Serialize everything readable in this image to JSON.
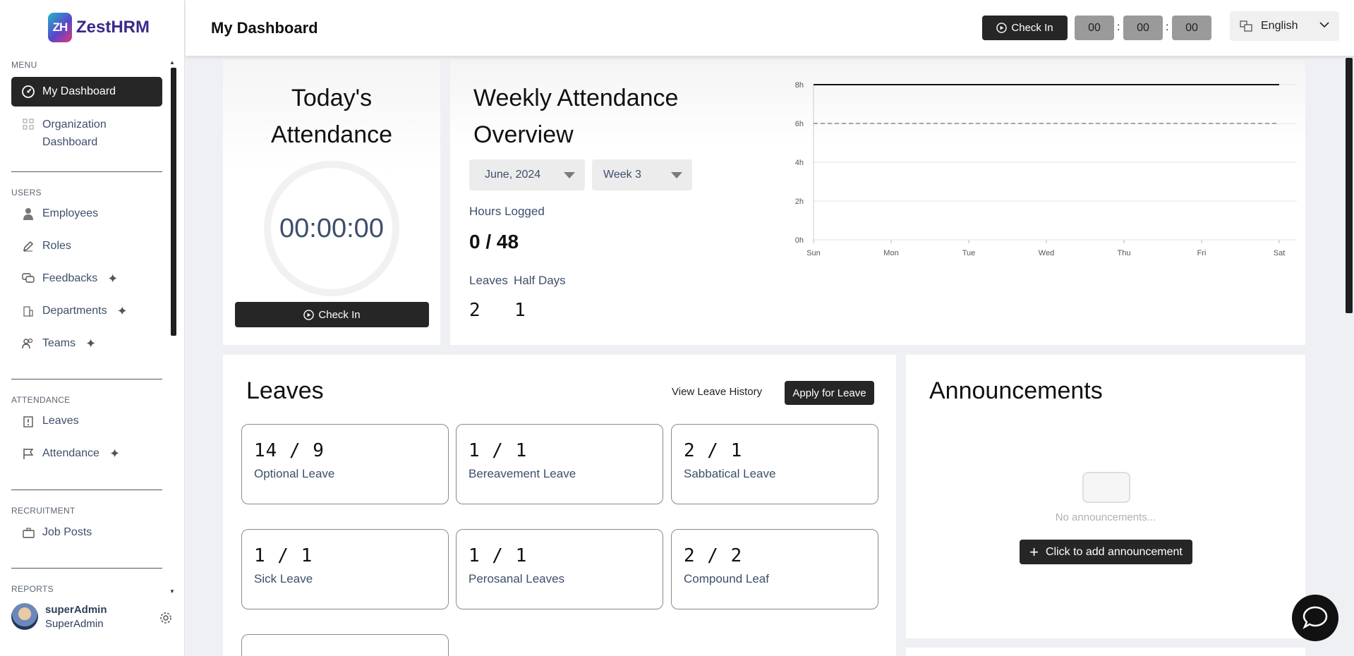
{
  "brand": {
    "logo_mark": "ZH",
    "logo_text": "ZestHRM"
  },
  "sidebar": {
    "sections": {
      "menu": "MENU",
      "users": "USERS",
      "attendance": "ATTENDANCE",
      "recruitment": "RECRUITMENT",
      "reports": "REPORTS"
    },
    "items": {
      "dashboard": "My Dashboard",
      "org_dashboard_1": "Organization",
      "org_dashboard_2": "Dashboard",
      "employees": "Employees",
      "roles": "Roles",
      "feedbacks": "Feedbacks",
      "departments": "Departments",
      "teams": "Teams",
      "leaves": "Leaves",
      "attendance": "Attendance",
      "job_posts": "Job Posts"
    },
    "user": {
      "name": "superAdmin",
      "role": "SuperAdmin"
    }
  },
  "header": {
    "title": "My Dashboard",
    "checkin_label": "Check In",
    "timer": {
      "hours": "00",
      "minutes": "00",
      "seconds": "00",
      "sep": ":"
    },
    "language": "English"
  },
  "today": {
    "title_1": "Today's",
    "title_2": "Attendance",
    "clock": "00:00:00",
    "checkin_label": "Check In"
  },
  "weekly": {
    "title_1": "Weekly Attendance",
    "title_2": "Overview",
    "month_select": "June, 2024",
    "week_select": "Week 3",
    "hours_label": "Hours Logged",
    "hours_value": "0 / 48",
    "leaves_label": "Leaves",
    "halfdays_label": "Half Days",
    "leaves_value": "2",
    "halfdays_value": "1"
  },
  "chart_data": {
    "type": "line",
    "categories": [
      "Sun",
      "Mon",
      "Tue",
      "Wed",
      "Thu",
      "Fri",
      "Sat"
    ],
    "y_ticks": [
      "0h",
      "2h",
      "4h",
      "6h",
      "8h"
    ],
    "ylim": [
      0,
      8
    ],
    "series": [
      {
        "values": [
          8,
          8,
          8,
          8,
          8,
          8,
          8
        ],
        "style": "solid",
        "color": "#111111"
      },
      {
        "values": [
          6,
          6,
          6,
          6,
          6,
          6,
          6
        ],
        "style": "dashed",
        "color": "#888888"
      }
    ],
    "grid": true
  },
  "leaves": {
    "title": "Leaves",
    "history_link": "View Leave History",
    "apply_label": "Apply for Leave",
    "cards": [
      {
        "count": "14 / 9",
        "name": "Optional Leave"
      },
      {
        "count": "1 / 1",
        "name": "Bereavement Leave"
      },
      {
        "count": "2 / 1",
        "name": "Sabbatical Leave"
      },
      {
        "count": "1 / 1",
        "name": "Sick Leave"
      },
      {
        "count": "1 / 1",
        "name": "Perosanal Leaves"
      },
      {
        "count": "2 / 2",
        "name": "Compound Leaf"
      }
    ]
  },
  "announcements": {
    "title": "Announcements",
    "empty": "No announcements...",
    "add_label": "Click to add announcement"
  }
}
